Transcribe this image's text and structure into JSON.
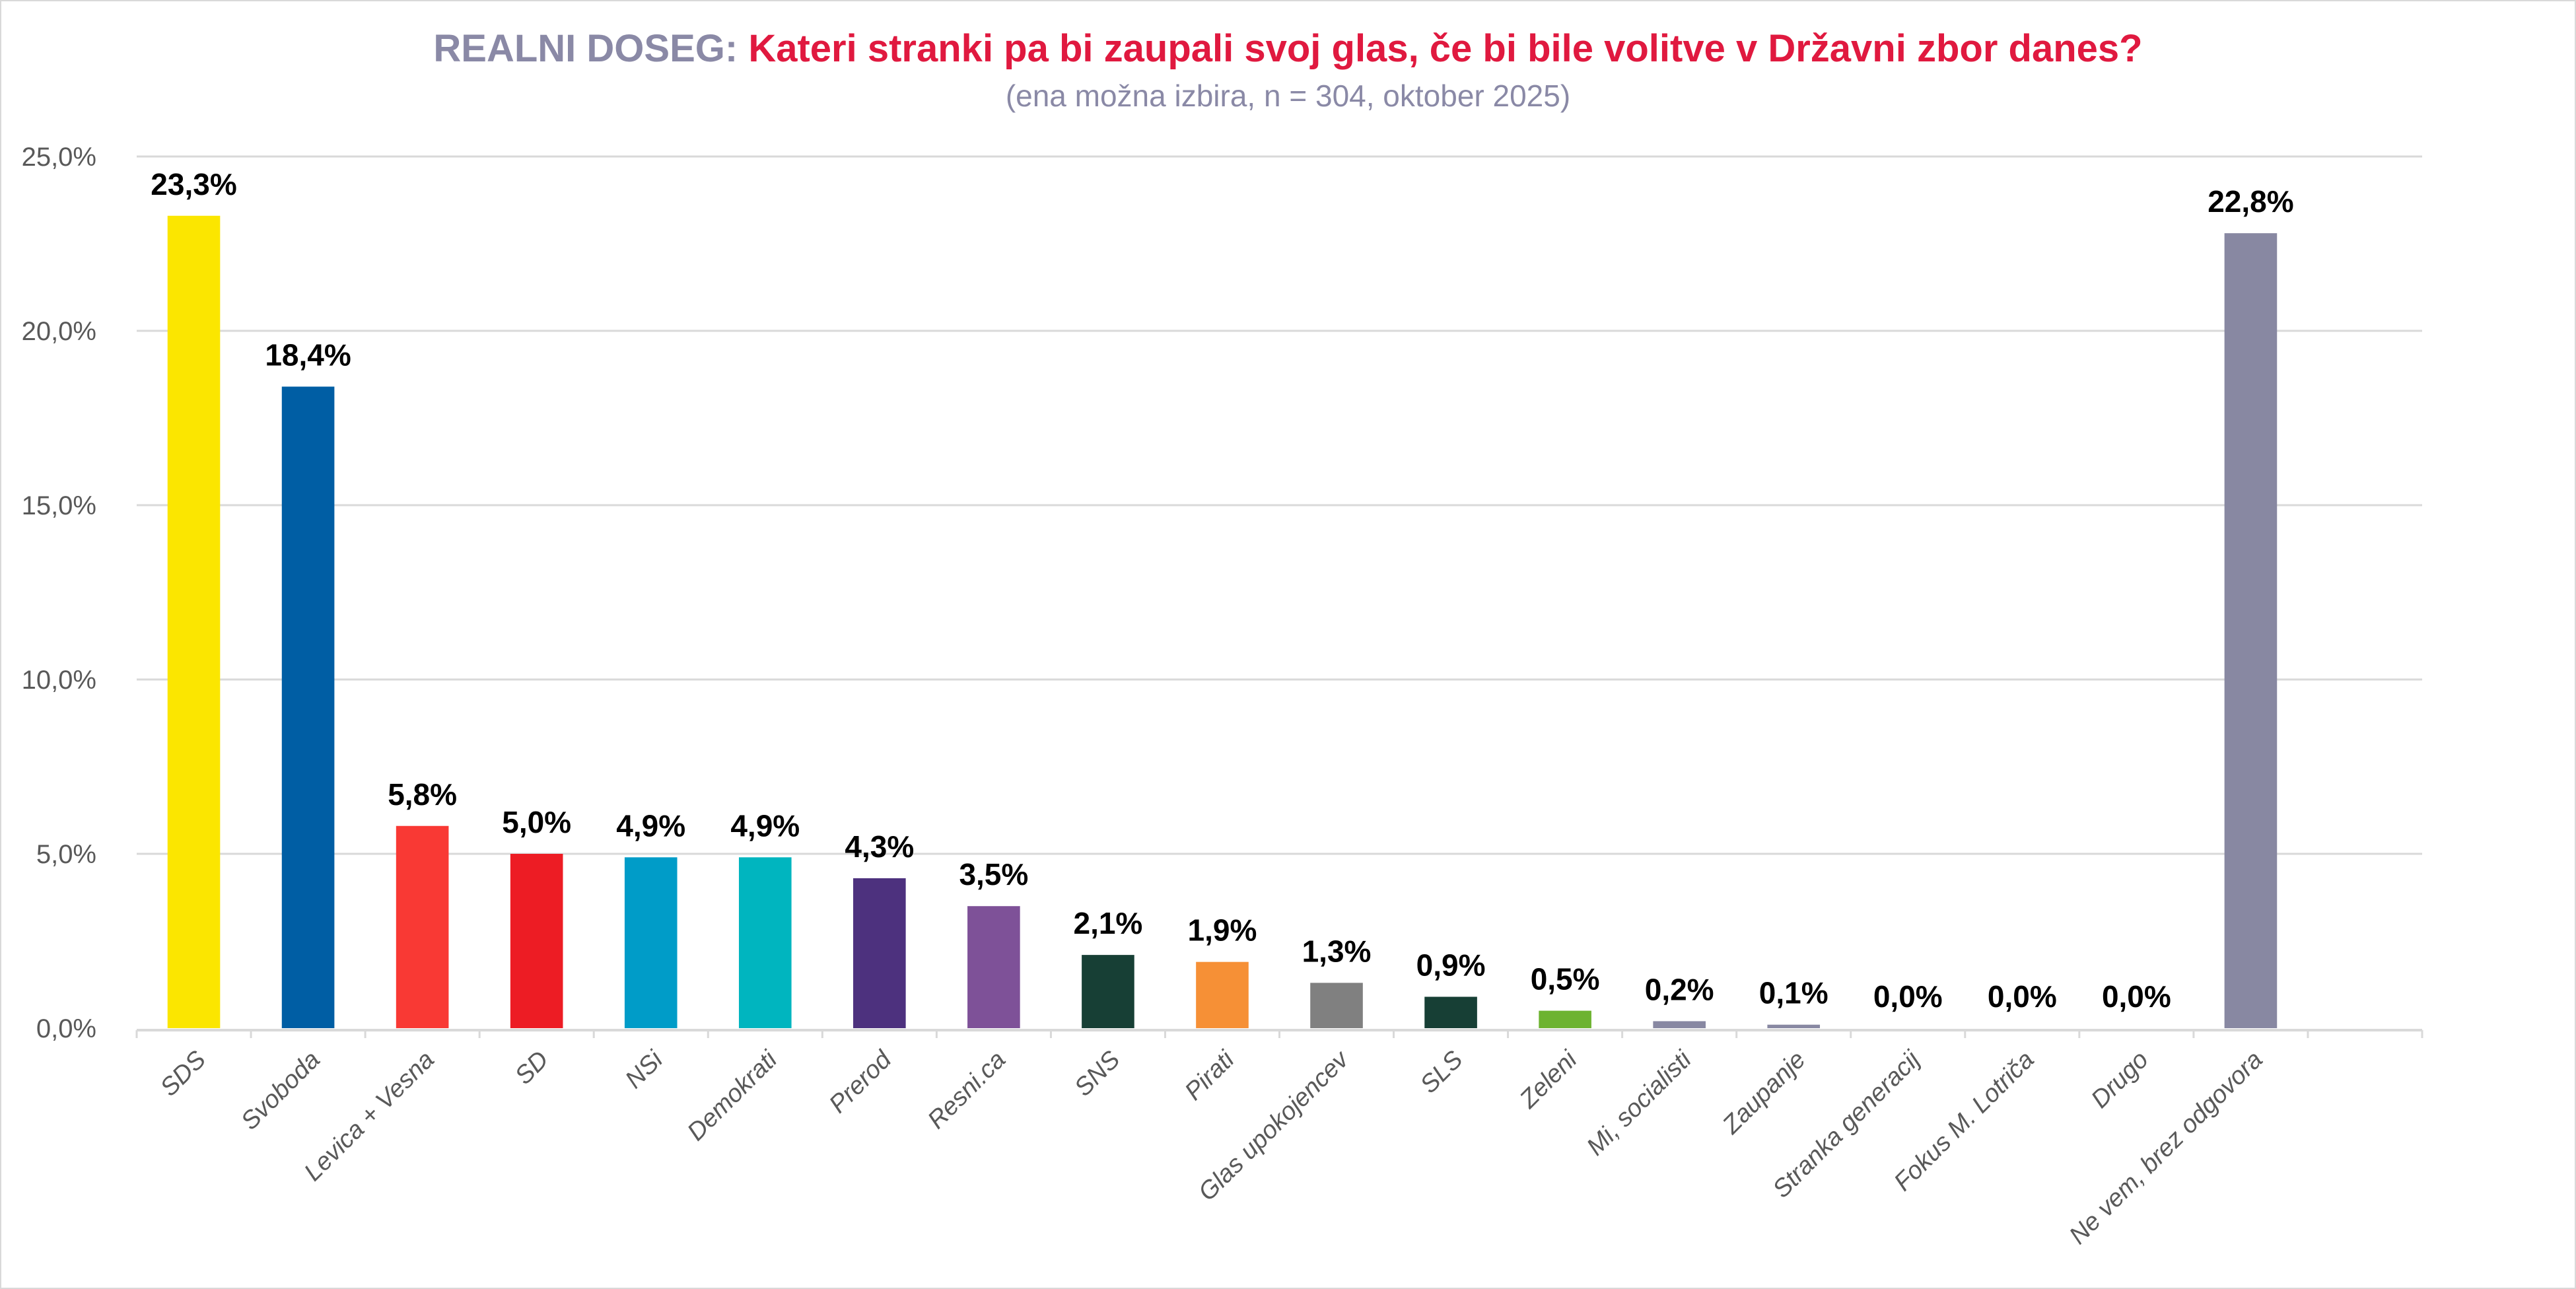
{
  "chart_data": {
    "type": "bar",
    "title_prefix": "REALNI DOSEG:",
    "title": "Kateri stranki pa bi zaupali svoj glas, če bi bile volitve v Državni zbor danes?",
    "subtitle": "(ena možna izbira, n = 304, oktober 2025)",
    "xlabel": "",
    "ylabel": "",
    "ylim": [
      0,
      25
    ],
    "yticks": [
      0,
      5,
      10,
      15,
      20,
      25
    ],
    "ytick_labels": [
      "0,0%",
      "5,0%",
      "10,0%",
      "15,0%",
      "20,0%",
      "25,0%"
    ],
    "grid": true,
    "legend": "none",
    "categories": [
      "SDS",
      "Svoboda",
      "Levica + Vesna",
      "SD",
      "NSi",
      "Demokrati",
      "Prerod",
      "Resni.ca",
      "SNS",
      "Pirati",
      "Glas upokojencev",
      "SLS",
      "Zeleni",
      "Mi, socialisti",
      "Zaupanje",
      "Stranka generacij",
      "Fokus M. Lotriča",
      "Drugo",
      "Ne vem, brez odgovora"
    ],
    "values": [
      23.3,
      18.4,
      5.8,
      5.0,
      4.9,
      4.9,
      4.3,
      3.5,
      2.1,
      1.9,
      1.3,
      0.9,
      0.5,
      0.2,
      0.1,
      0.0,
      0.0,
      0.0,
      22.8
    ],
    "data_labels": [
      "23,3%",
      "18,4%",
      "5,8%",
      "5,0%",
      "4,9%",
      "4,9%",
      "4,3%",
      "3,5%",
      "2,1%",
      "1,9%",
      "1,3%",
      "0,9%",
      "0,5%",
      "0,2%",
      "0,1%",
      "0,0%",
      "0,0%",
      "0,0%",
      "22,8%"
    ],
    "colors": [
      "#fbe600",
      "#005ea4",
      "#f93934",
      "#ed1c24",
      "#009cc8",
      "#00b5bf",
      "#4d317e",
      "#7e5198",
      "#173f35",
      "#f69036",
      "#808080",
      "#173f35",
      "#6db330",
      "#8888a2",
      "#8888a2",
      "#8888a2",
      "#8888a2",
      "#8888a2",
      "#8888a2"
    ],
    "empty_trailing_slots": 1
  },
  "colors": {
    "title_prefix": "#8a89a6",
    "title_question": "#e0193f",
    "subtitle": "#8a89a6",
    "gridline": "#d9d9d9",
    "axis_text": "#595959"
  }
}
